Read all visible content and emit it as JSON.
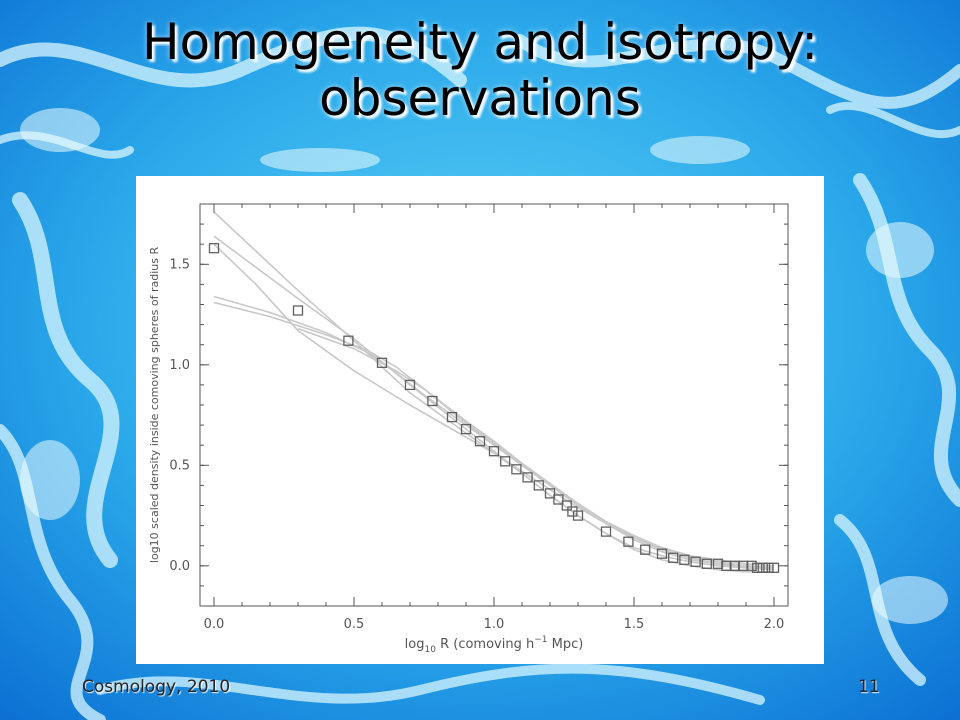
{
  "slide": {
    "title_line1": "Homogeneity and isotropy:",
    "title_line2": "observations",
    "footer_left": "Cosmology, 2010",
    "page_number": "11"
  },
  "colors": {
    "background_light": "#bfefff",
    "background_mid": "#3cc0f0",
    "background_dark": "#0a73d8",
    "marker": "#606060",
    "model_curve": "#c8c8c8",
    "axis": "#555555"
  },
  "chart_data": {
    "type": "scatter",
    "xlabel": {
      "pre": "log",
      "sub": "10",
      "post": " R   (comoving h",
      "sup": "−1",
      "tail": " Mpc)"
    },
    "ylabel": "log10 scaled density inside comoving spheres of radius R",
    "xlim": [
      -0.05,
      2.05
    ],
    "ylim": [
      -0.2,
      1.8
    ],
    "xticks": [
      0.0,
      0.5,
      1.0,
      1.5,
      2.0
    ],
    "xtick_labels": [
      "0.0",
      "0.5",
      "1.0",
      "1.5",
      "2.0"
    ],
    "yticks": [
      0.0,
      0.5,
      1.0,
      1.5
    ],
    "ytick_labels": [
      "0.0",
      "0.5",
      "1.0",
      "1.5"
    ],
    "grid": false,
    "legend": "none",
    "series": [
      {
        "marker": "open-square",
        "x": [
          0.0,
          0.3,
          0.48,
          0.6,
          0.7,
          0.78,
          0.85,
          0.9,
          0.95,
          1.0,
          1.04,
          1.08,
          1.12,
          1.16,
          1.2,
          1.23,
          1.26,
          1.28,
          1.3,
          1.4,
          1.48,
          1.54,
          1.6,
          1.64,
          1.68,
          1.72,
          1.76,
          1.8,
          1.83,
          1.86,
          1.89,
          1.92,
          1.94,
          1.96,
          1.98,
          2.0
        ],
        "y": [
          1.58,
          1.27,
          1.12,
          1.01,
          0.9,
          0.82,
          0.74,
          0.68,
          0.62,
          0.57,
          0.52,
          0.48,
          0.44,
          0.4,
          0.36,
          0.33,
          0.3,
          0.27,
          0.25,
          0.17,
          0.12,
          0.08,
          0.06,
          0.04,
          0.03,
          0.02,
          0.01,
          0.01,
          0.0,
          0.0,
          0.0,
          0.0,
          -0.01,
          -0.01,
          -0.01,
          -0.01
        ]
      }
    ],
    "model_curves": [
      {
        "x": [
          0.0,
          0.3,
          0.5,
          0.7,
          0.9,
          1.0,
          1.1,
          1.2,
          1.3,
          1.4,
          1.5,
          1.6,
          1.7,
          1.8,
          1.9,
          2.0
        ],
        "y": [
          1.76,
          1.37,
          1.12,
          0.86,
          0.66,
          0.56,
          0.46,
          0.35,
          0.25,
          0.16,
          0.09,
          0.05,
          0.02,
          0.0,
          -0.01,
          -0.01
        ]
      },
      {
        "x": [
          0.0,
          0.3,
          0.5,
          0.7,
          0.9,
          1.0,
          1.1,
          1.2,
          1.3,
          1.4,
          1.5,
          1.6,
          1.7,
          1.8,
          1.9,
          2.0
        ],
        "y": [
          1.64,
          1.33,
          1.13,
          0.9,
          0.68,
          0.57,
          0.46,
          0.35,
          0.25,
          0.16,
          0.08,
          0.03,
          0.0,
          -0.02,
          -0.03,
          -0.03
        ]
      },
      {
        "x": [
          0.0,
          0.15,
          0.3,
          0.5,
          0.7,
          0.9,
          1.0,
          1.1,
          1.2,
          1.3,
          1.4,
          1.5,
          1.6,
          1.7,
          1.8,
          1.9,
          2.0
        ],
        "y": [
          1.6,
          1.4,
          1.17,
          0.97,
          0.8,
          0.64,
          0.56,
          0.47,
          0.38,
          0.29,
          0.21,
          0.14,
          0.09,
          0.05,
          0.03,
          0.01,
          0.0
        ]
      },
      {
        "x": [
          0.0,
          0.2,
          0.4,
          0.55,
          0.65,
          0.75,
          0.9,
          1.0,
          1.1,
          1.2,
          1.3,
          1.4,
          1.5,
          1.6,
          1.7,
          1.8,
          1.9,
          2.0
        ],
        "y": [
          1.34,
          1.26,
          1.16,
          1.06,
          0.96,
          0.85,
          0.7,
          0.6,
          0.5,
          0.4,
          0.3,
          0.21,
          0.13,
          0.07,
          0.03,
          0.01,
          -0.01,
          -0.02
        ]
      },
      {
        "x": [
          0.0,
          0.2,
          0.4,
          0.55,
          0.65,
          0.75,
          0.9,
          1.0,
          1.1,
          1.2,
          1.3,
          1.4,
          1.5,
          1.6,
          1.7,
          1.8,
          1.9,
          2.0
        ],
        "y": [
          1.31,
          1.24,
          1.15,
          1.07,
          0.99,
          0.88,
          0.71,
          0.61,
          0.5,
          0.4,
          0.31,
          0.22,
          0.15,
          0.09,
          0.05,
          0.02,
          0.0,
          -0.01
        ]
      },
      {
        "x": [
          0.3,
          0.5,
          0.65,
          0.75,
          0.9,
          1.0,
          1.1,
          1.2,
          1.3,
          1.4,
          1.5,
          1.6,
          1.7,
          1.8,
          1.9,
          2.0
        ],
        "y": [
          1.18,
          1.08,
          0.97,
          0.88,
          0.72,
          0.62,
          0.51,
          0.41,
          0.31,
          0.22,
          0.14,
          0.08,
          0.04,
          0.01,
          0.0,
          -0.01
        ]
      }
    ]
  }
}
